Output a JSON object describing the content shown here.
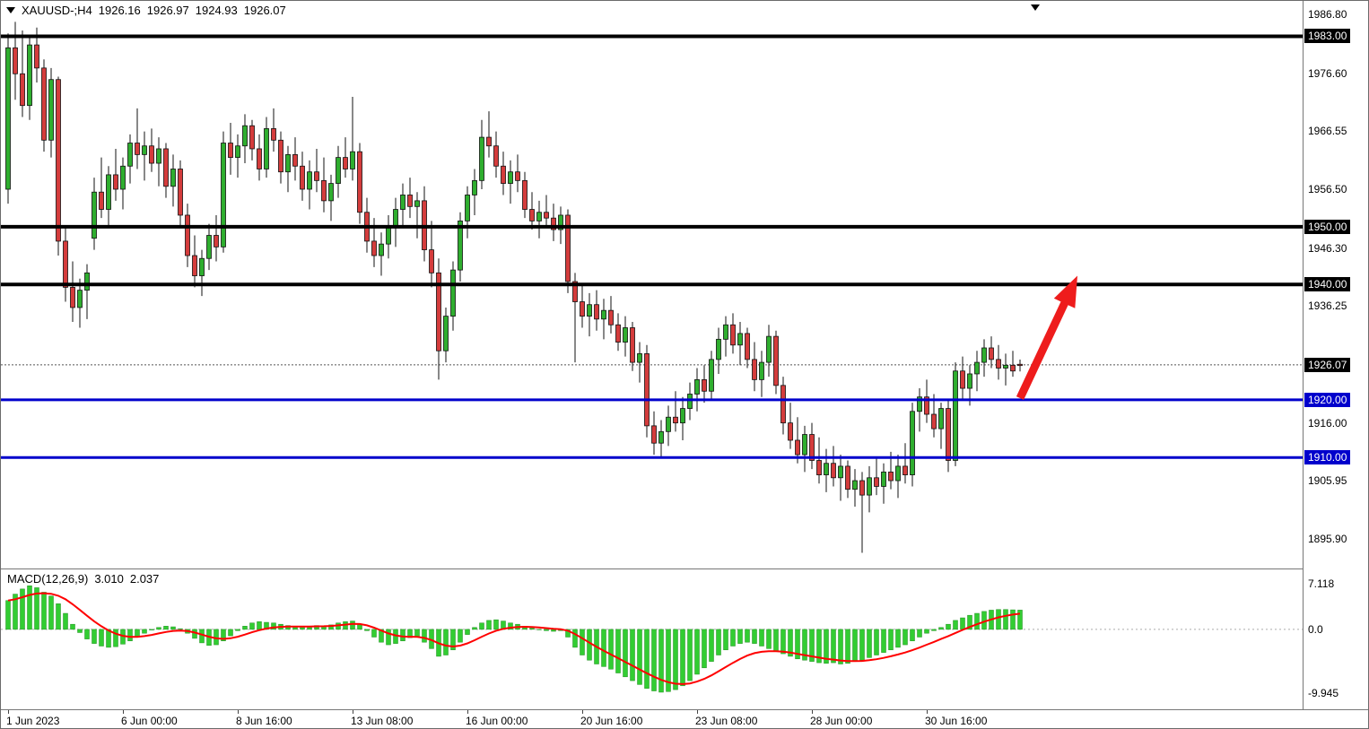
{
  "header": {
    "symbol_period": "XAUUSD-;H4",
    "open": "1926.16",
    "high": "1926.97",
    "low": "1924.93",
    "close": "1926.07"
  },
  "indicator_label": {
    "name": "MACD(12,26,9)",
    "main": "3.010",
    "signal": "2.037"
  },
  "axes": {
    "price_gridline_labels": [
      {
        "price": 1986.8,
        "text": "1986.80"
      },
      {
        "price": 1976.6,
        "text": "1976.60"
      },
      {
        "price": 1966.55,
        "text": "1966.55"
      },
      {
        "price": 1956.5,
        "text": "1956.50"
      },
      {
        "price": 1946.3,
        "text": "1946.30"
      },
      {
        "price": 1936.25,
        "text": "1936.25"
      },
      {
        "price": 1916.0,
        "text": "1916.00"
      },
      {
        "price": 1905.95,
        "text": "1905.95"
      },
      {
        "price": 1895.9,
        "text": "1895.90"
      }
    ],
    "price_boxes": [
      {
        "price": 1983.0,
        "text": "1983.00",
        "bg": "#000000"
      },
      {
        "price": 1950.0,
        "text": "1950.00",
        "bg": "#000000"
      },
      {
        "price": 1940.0,
        "text": "1940.00",
        "bg": "#000000"
      },
      {
        "price": 1926.07,
        "text": "1926.07",
        "bg": "#000000",
        "type": "current_price"
      },
      {
        "price": 1920.0,
        "text": "1920.00",
        "bg": "#0000cc"
      },
      {
        "price": 1910.0,
        "text": "1910.00",
        "bg": "#0000cc"
      }
    ],
    "macd_axis_labels": [
      {
        "value": 7.118,
        "text": "7.118"
      },
      {
        "value": 0,
        "text": "0.0"
      },
      {
        "value": -9.945,
        "text": "-9.945"
      }
    ],
    "time_labels": [
      {
        "bar": 0,
        "text": "1 Jun 2023"
      },
      {
        "bar": 16,
        "text": "6 Jun 00:00"
      },
      {
        "bar": 32,
        "text": "8 Jun 16:00"
      },
      {
        "bar": 48,
        "text": "13 Jun 08:00"
      },
      {
        "bar": 64,
        "text": "16 Jun 00:00"
      },
      {
        "bar": 80,
        "text": "20 Jun 16:00"
      },
      {
        "bar": 96,
        "text": "23 Jun 08:00"
      },
      {
        "bar": 112,
        "text": "28 Jun 00:00"
      },
      {
        "bar": 128,
        "text": "30 Jun 16:00"
      }
    ]
  },
  "chart_data": {
    "type": "candlestick",
    "symbol": "XAUUSD-",
    "timeframe": "H4",
    "title": "XAUUSD-;H4 1926.16 1926.97 1924.93 1926.07",
    "price_range_visible": [
      1891.2,
      1989.1
    ],
    "current_price": 1926.07,
    "ohlc_current": [
      1926.16,
      1926.97,
      1924.93,
      1926.07
    ],
    "sr_lines": [
      {
        "price": 1983.0,
        "color": "#000000",
        "width": 4
      },
      {
        "price": 1950.0,
        "color": "#000000",
        "width": 4
      },
      {
        "price": 1940.0,
        "color": "#000000",
        "width": 4
      },
      {
        "price": 1920.0,
        "color": "#0000cc",
        "width": 3
      },
      {
        "price": 1910.0,
        "color": "#0000cc",
        "width": 3
      }
    ],
    "arrow_annotation": {
      "from_bar": 141,
      "from_price": 1920.3,
      "to_bar": 149,
      "to_price": 1941.5,
      "color": "#ee1c1c"
    },
    "colors": {
      "up": "#2fae2f",
      "down": "#d43c3c",
      "outline": "#111111",
      "macd_histogram": "#32cd32",
      "macd_signal": "#ff0000"
    },
    "candles": [
      [
        1956.5,
        1983.5,
        1954.0,
        1981.0
      ],
      [
        1981.0,
        1985.5,
        1972.0,
        1976.5
      ],
      [
        1976.5,
        1984.0,
        1969.0,
        1971.0
      ],
      [
        1971.0,
        1983.0,
        1968.5,
        1981.5
      ],
      [
        1981.5,
        1984.5,
        1975.0,
        1977.5
      ],
      [
        1977.5,
        1979.0,
        1963.0,
        1965.0
      ],
      [
        1965.0,
        1977.5,
        1962.0,
        1975.5
      ],
      [
        1975.5,
        1976.0,
        1945.0,
        1947.5
      ],
      [
        1947.5,
        1950.0,
        1937.0,
        1939.5
      ],
      [
        1939.5,
        1944.0,
        1933.5,
        1936.0
      ],
      [
        1936.0,
        1941.0,
        1932.5,
        1939.0
      ],
      [
        1939.0,
        1943.5,
        1934.0,
        1942.0
      ],
      [
        1948.0,
        1958.5,
        1946.0,
        1956.0
      ],
      [
        1956.0,
        1962.0,
        1951.5,
        1953.0
      ],
      [
        1953.0,
        1960.5,
        1950.0,
        1959.0
      ],
      [
        1959.0,
        1963.5,
        1954.5,
        1956.5
      ],
      [
        1956.5,
        1962.0,
        1953.0,
        1960.5
      ],
      [
        1960.5,
        1966.0,
        1957.5,
        1964.5
      ],
      [
        1964.5,
        1970.5,
        1960.0,
        1962.5
      ],
      [
        1962.5,
        1966.5,
        1958.0,
        1964.0
      ],
      [
        1964.0,
        1967.0,
        1959.5,
        1961.0
      ],
      [
        1961.0,
        1965.5,
        1957.0,
        1963.5
      ],
      [
        1963.5,
        1964.5,
        1955.0,
        1957.0
      ],
      [
        1957.0,
        1962.5,
        1953.5,
        1960.0
      ],
      [
        1960.0,
        1961.5,
        1950.0,
        1952.0
      ],
      [
        1952.0,
        1954.0,
        1943.0,
        1945.0
      ],
      [
        1945.0,
        1948.5,
        1939.5,
        1941.5
      ],
      [
        1941.5,
        1946.0,
        1938.0,
        1944.5
      ],
      [
        1944.5,
        1950.5,
        1942.5,
        1948.5
      ],
      [
        1948.5,
        1952.0,
        1944.0,
        1946.5
      ],
      [
        1946.5,
        1966.5,
        1945.5,
        1964.5
      ],
      [
        1964.5,
        1968.0,
        1959.0,
        1962.0
      ],
      [
        1962.0,
        1966.0,
        1958.5,
        1964.0
      ],
      [
        1964.0,
        1969.5,
        1961.0,
        1967.5
      ],
      [
        1967.5,
        1968.5,
        1961.5,
        1963.5
      ],
      [
        1963.5,
        1966.0,
        1958.0,
        1960.0
      ],
      [
        1960.0,
        1969.0,
        1958.5,
        1967.0
      ],
      [
        1967.0,
        1970.5,
        1963.0,
        1965.0
      ],
      [
        1965.0,
        1966.5,
        1957.5,
        1959.5
      ],
      [
        1959.5,
        1964.0,
        1956.0,
        1962.5
      ],
      [
        1962.5,
        1965.5,
        1958.0,
        1960.5
      ],
      [
        1960.5,
        1963.0,
        1954.5,
        1956.5
      ],
      [
        1956.5,
        1961.5,
        1953.0,
        1959.5
      ],
      [
        1959.5,
        1963.5,
        1956.0,
        1958.0
      ],
      [
        1958.0,
        1962.0,
        1952.5,
        1954.5
      ],
      [
        1954.5,
        1959.0,
        1951.0,
        1957.5
      ],
      [
        1957.5,
        1964.0,
        1955.0,
        1962.0
      ],
      [
        1962.0,
        1965.5,
        1958.5,
        1960.0
      ],
      [
        1960.0,
        1972.5,
        1958.0,
        1963.0
      ],
      [
        1963.0,
        1964.5,
        1950.5,
        1952.5
      ],
      [
        1952.5,
        1955.0,
        1945.5,
        1947.5
      ],
      [
        1947.5,
        1951.5,
        1943.0,
        1945.0
      ],
      [
        1945.0,
        1949.0,
        1941.5,
        1947.0
      ],
      [
        1947.0,
        1952.0,
        1944.5,
        1950.0
      ],
      [
        1950.0,
        1955.0,
        1946.5,
        1953.0
      ],
      [
        1953.0,
        1957.5,
        1950.0,
        1955.5
      ],
      [
        1955.5,
        1958.5,
        1951.5,
        1953.5
      ],
      [
        1953.5,
        1956.0,
        1948.0,
        1954.5
      ],
      [
        1954.5,
        1957.0,
        1944.0,
        1946.0
      ],
      [
        1946.0,
        1951.0,
        1939.5,
        1942.0
      ],
      [
        1942.0,
        1944.5,
        1923.5,
        1928.5
      ],
      [
        1928.5,
        1936.0,
        1926.5,
        1934.5
      ],
      [
        1934.5,
        1944.0,
        1932.0,
        1942.5
      ],
      [
        1942.5,
        1952.5,
        1940.5,
        1951.0
      ],
      [
        1951.0,
        1957.0,
        1948.0,
        1955.5
      ],
      [
        1955.5,
        1960.0,
        1952.0,
        1958.0
      ],
      [
        1958.0,
        1968.5,
        1956.5,
        1965.5
      ],
      [
        1965.5,
        1970.0,
        1962.0,
        1964.0
      ],
      [
        1964.0,
        1966.5,
        1958.5,
        1960.5
      ],
      [
        1960.5,
        1963.0,
        1955.5,
        1957.5
      ],
      [
        1957.5,
        1961.5,
        1954.0,
        1959.5
      ],
      [
        1959.5,
        1962.5,
        1956.0,
        1958.0
      ],
      [
        1958.0,
        1959.5,
        1951.5,
        1953.0
      ],
      [
        1953.0,
        1956.0,
        1949.5,
        1951.0
      ],
      [
        1951.0,
        1954.5,
        1948.0,
        1952.5
      ],
      [
        1952.5,
        1955.5,
        1950.0,
        1951.5
      ],
      [
        1951.5,
        1954.0,
        1947.5,
        1949.5
      ],
      [
        1949.5,
        1953.5,
        1947.0,
        1952.0
      ],
      [
        1952.0,
        1953.0,
        1938.5,
        1940.5
      ],
      [
        1940.5,
        1942.0,
        1926.5,
        1937.0
      ],
      [
        1937.0,
        1940.0,
        1932.5,
        1934.5
      ],
      [
        1934.5,
        1938.5,
        1931.0,
        1936.5
      ],
      [
        1936.5,
        1939.0,
        1932.0,
        1934.0
      ],
      [
        1934.0,
        1937.5,
        1930.5,
        1935.5
      ],
      [
        1935.5,
        1938.0,
        1931.5,
        1933.0
      ],
      [
        1933.0,
        1935.0,
        1928.5,
        1930.0
      ],
      [
        1930.0,
        1934.5,
        1927.5,
        1932.5
      ],
      [
        1932.5,
        1933.5,
        1925.0,
        1926.5
      ],
      [
        1926.5,
        1930.0,
        1923.0,
        1928.0
      ],
      [
        1928.0,
        1929.5,
        1913.5,
        1915.5
      ],
      [
        1915.5,
        1918.0,
        1910.5,
        1912.5
      ],
      [
        1912.5,
        1916.5,
        1910.0,
        1914.5
      ],
      [
        1914.5,
        1919.0,
        1912.0,
        1917.0
      ],
      [
        1917.0,
        1921.5,
        1914.5,
        1916.0
      ],
      [
        1916.0,
        1920.5,
        1913.0,
        1918.5
      ],
      [
        1918.5,
        1923.0,
        1916.5,
        1921.0
      ],
      [
        1921.0,
        1925.5,
        1918.0,
        1923.5
      ],
      [
        1923.5,
        1926.0,
        1919.5,
        1921.5
      ],
      [
        1921.5,
        1928.5,
        1920.0,
        1927.0
      ],
      [
        1927.0,
        1932.5,
        1924.5,
        1930.5
      ],
      [
        1930.5,
        1934.5,
        1927.5,
        1933.0
      ],
      [
        1933.0,
        1935.0,
        1928.0,
        1929.5
      ],
      [
        1929.5,
        1933.5,
        1926.0,
        1931.5
      ],
      [
        1931.5,
        1932.5,
        1925.5,
        1927.0
      ],
      [
        1927.0,
        1930.0,
        1921.5,
        1923.5
      ],
      [
        1923.5,
        1928.5,
        1920.5,
        1926.5
      ],
      [
        1926.5,
        1933.0,
        1924.0,
        1931.0
      ],
      [
        1931.0,
        1932.0,
        1921.0,
        1922.5
      ],
      [
        1922.5,
        1924.0,
        1914.0,
        1916.0
      ],
      [
        1916.0,
        1919.5,
        1911.5,
        1913.0
      ],
      [
        1913.0,
        1917.0,
        1909.0,
        1910.5
      ],
      [
        1910.5,
        1915.5,
        1907.5,
        1914.0
      ],
      [
        1914.0,
        1916.0,
        1908.0,
        1909.5
      ],
      [
        1909.5,
        1913.5,
        1905.5,
        1907.0
      ],
      [
        1907.0,
        1911.5,
        1904.0,
        1909.0
      ],
      [
        1909.0,
        1912.0,
        1905.0,
        1906.5
      ],
      [
        1906.5,
        1910.5,
        1902.5,
        1908.5
      ],
      [
        1908.5,
        1909.5,
        1903.0,
        1904.5
      ],
      [
        1904.5,
        1908.0,
        1901.5,
        1906.0
      ],
      [
        1906.0,
        1907.5,
        1893.5,
        1903.5
      ],
      [
        1903.5,
        1908.5,
        1900.5,
        1906.5
      ],
      [
        1906.5,
        1910.0,
        1903.5,
        1905.0
      ],
      [
        1905.0,
        1909.0,
        1902.0,
        1907.5
      ],
      [
        1907.5,
        1911.0,
        1904.5,
        1906.0
      ],
      [
        1906.0,
        1910.5,
        1903.0,
        1908.5
      ],
      [
        1908.5,
        1912.5,
        1905.5,
        1907.0
      ],
      [
        1907.0,
        1919.5,
        1905.0,
        1918.0
      ],
      [
        1918.0,
        1922.0,
        1914.5,
        1920.5
      ],
      [
        1920.5,
        1923.5,
        1916.0,
        1917.5
      ],
      [
        1917.5,
        1921.0,
        1913.5,
        1915.0
      ],
      [
        1915.0,
        1919.5,
        1911.5,
        1918.5
      ],
      [
        1918.5,
        1920.0,
        1907.5,
        1909.5
      ],
      [
        1909.5,
        1926.5,
        1908.5,
        1925.0
      ],
      [
        1925.0,
        1927.5,
        1920.0,
        1922.0
      ],
      [
        1922.0,
        1926.0,
        1919.0,
        1924.5
      ],
      [
        1924.5,
        1928.5,
        1921.5,
        1926.5
      ],
      [
        1926.5,
        1930.5,
        1924.0,
        1929.0
      ],
      [
        1929.0,
        1931.0,
        1925.5,
        1927.0
      ],
      [
        1927.0,
        1929.5,
        1923.5,
        1925.5
      ],
      [
        1925.5,
        1928.0,
        1922.5,
        1926.0
      ],
      [
        1926.0,
        1928.5,
        1924.0,
        1925.0
      ],
      [
        1926.16,
        1926.97,
        1924.93,
        1926.07
      ]
    ],
    "macd": {
      "params": [
        12,
        26,
        9
      ],
      "main_last": 3.01,
      "signal_last": 2.037,
      "scale": {
        "max": 7.118,
        "min": -9.945
      },
      "histogram": [
        4.5,
        5.5,
        6.3,
        6.8,
        6.5,
        5.8,
        5.2,
        4.0,
        2.5,
        0.8,
        -0.5,
        -1.5,
        -2.2,
        -2.6,
        -2.8,
        -2.7,
        -2.3,
        -1.8,
        -1.2,
        -0.6,
        -0.1,
        0.3,
        0.5,
        0.4,
        0.1,
        -0.6,
        -1.4,
        -2.1,
        -2.5,
        -2.4,
        -1.8,
        -1.0,
        -0.2,
        0.5,
        1.0,
        1.2,
        1.1,
        1.0,
        0.8,
        0.6,
        0.5,
        0.4,
        0.5,
        0.6,
        0.5,
        0.7,
        1.0,
        1.2,
        1.3,
        0.8,
        -0.2,
        -1.2,
        -2.0,
        -2.4,
        -2.2,
        -1.8,
        -1.3,
        -1.2,
        -2.0,
        -3.0,
        -4.2,
        -4.0,
        -3.2,
        -2.0,
        -0.8,
        0.3,
        1.0,
        1.4,
        1.5,
        1.3,
        1.0,
        0.8,
        0.5,
        0.2,
        0.0,
        -0.2,
        -0.3,
        -0.2,
        -1.2,
        -2.8,
        -4.0,
        -4.8,
        -5.4,
        -5.8,
        -6.2,
        -6.8,
        -7.4,
        -8.0,
        -8.6,
        -9.2,
        -9.6,
        -9.8,
        -9.7,
        -9.4,
        -8.8,
        -8.0,
        -7.0,
        -6.0,
        -5.0,
        -4.0,
        -3.2,
        -2.6,
        -2.2,
        -2.0,
        -2.2,
        -2.6,
        -3.0,
        -3.4,
        -3.8,
        -4.2,
        -4.6,
        -4.8,
        -5.0,
        -5.2,
        -5.3,
        -5.2,
        -5.4,
        -5.3,
        -5.0,
        -4.8,
        -4.4,
        -4.0,
        -3.6,
        -3.2,
        -2.8,
        -2.4,
        -1.8,
        -1.2,
        -0.6,
        -0.2,
        0.3,
        0.8,
        1.4,
        1.8,
        2.2,
        2.5,
        2.8,
        3.0,
        3.1,
        3.1,
        3.05,
        3.01
      ]
    }
  }
}
